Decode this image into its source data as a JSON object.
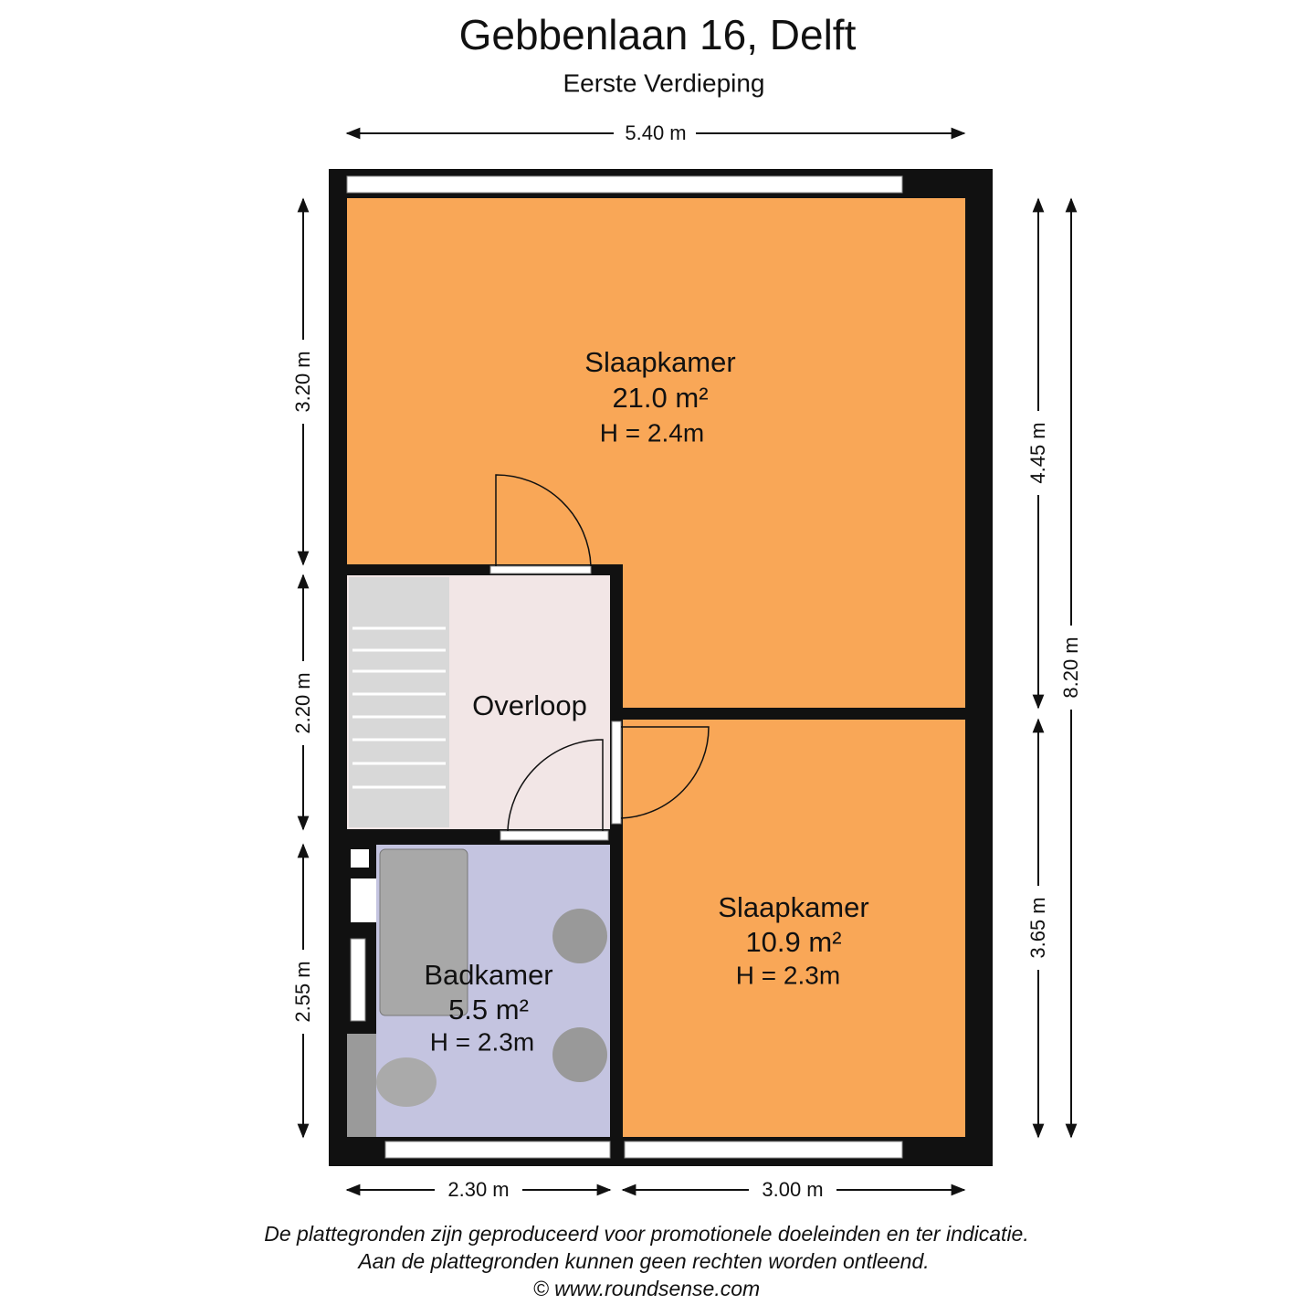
{
  "header": {
    "title": "Gebbenlaan 16, Delft",
    "subtitle": "Eerste Verdieping"
  },
  "dimensions": {
    "top": "5.40 m",
    "left": [
      "3.20 m",
      "2.20 m",
      "2.55 m"
    ],
    "right_inner": [
      "4.45 m",
      "3.65 m"
    ],
    "right_outer": "8.20 m",
    "bottom": [
      "2.30 m",
      "3.00 m"
    ]
  },
  "rooms": [
    {
      "name": "Slaapkamer",
      "area": "21.0 m²",
      "height": "H = 2.4m"
    },
    {
      "name": "Overloop"
    },
    {
      "name": "Slaapkamer",
      "area": "10.9 m²",
      "height": "H = 2.3m"
    },
    {
      "name": "Badkamer",
      "area": "5.5 m²",
      "height": "H = 2.3m"
    }
  ],
  "footer": {
    "disclaimer": [
      "De plattegronden zijn geproduceerd voor promotionele doeleinden en ter indicatie.",
      "Aan de plattegronden kunnen geen rechten worden ontleend."
    ],
    "credit": "© www.roundsense.com"
  }
}
